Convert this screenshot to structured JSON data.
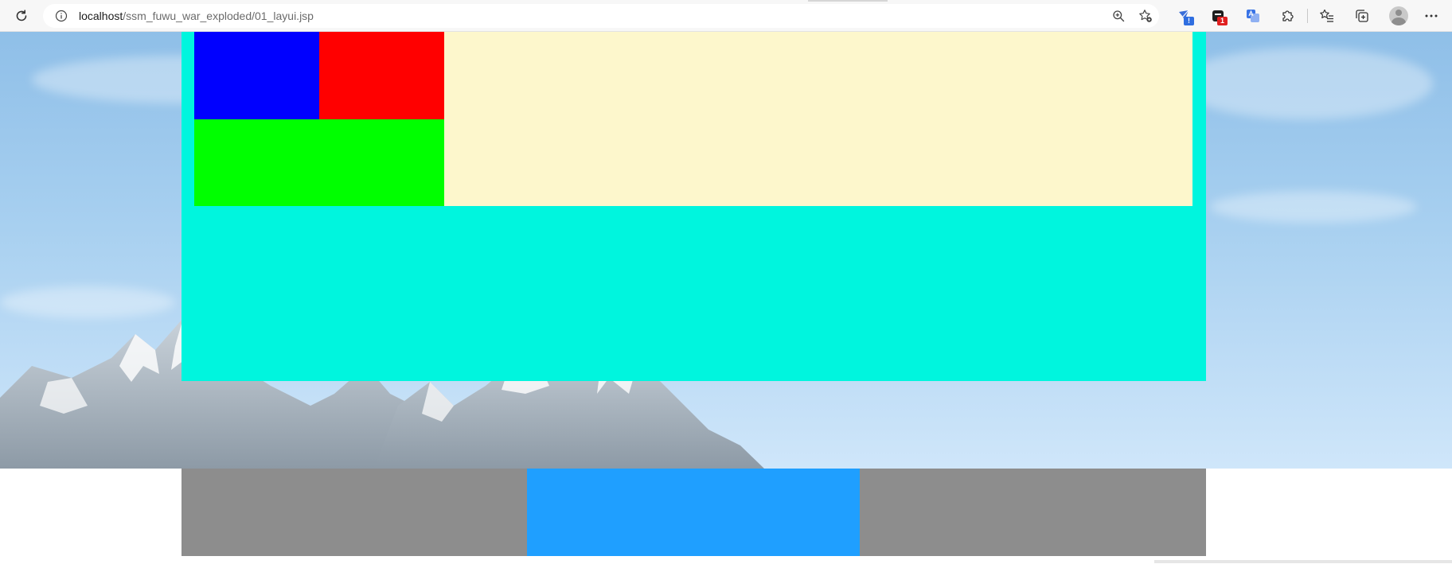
{
  "browser": {
    "url_host": "localhost",
    "url_path": "/ssm_fuwu_war_exploded/01_layui.jsp",
    "icons": {
      "reload": "reload-icon",
      "site_info": "info-icon",
      "zoom": "zoom-icon",
      "favorite": "add-favorite-icon",
      "extensions": [
        "extension-mail-icon",
        "extension-app-icon",
        "extension-translate-icon",
        "puzzle-icon"
      ],
      "favorites": "favorites-icon",
      "collections": "collections-icon",
      "profile": "avatar",
      "menu": "more-icon"
    },
    "badges": {
      "extension_mail": "!",
      "extension_app": "1"
    }
  },
  "page": {
    "colors": {
      "main_container": "#00f5de",
      "cream_panel": "#fdf7cc",
      "blue_block": "#0000ff",
      "red_block": "#ff0000",
      "green_block": "#00ff00",
      "footer_side": "#8d8d8d",
      "footer_center": "#1f9fff"
    }
  }
}
